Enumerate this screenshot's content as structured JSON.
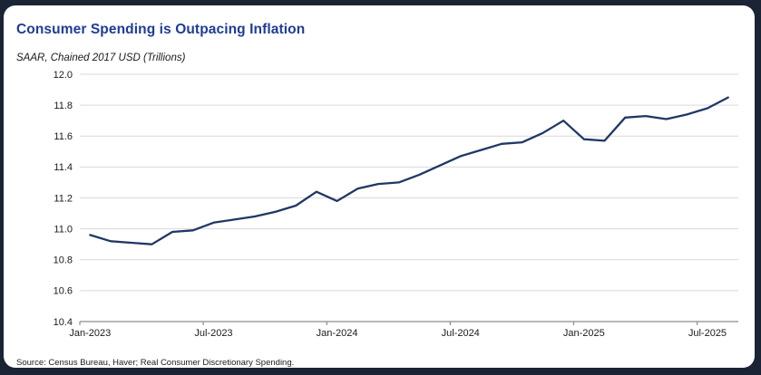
{
  "header": {
    "title": "Consumer Spending is Outpacing Inflation",
    "subtitle": "SAAR, Chained 2017 USD (Trillions)"
  },
  "footer": {
    "source": "Source: Census Bureau, Haver; Real Consumer Discretionary Spending."
  },
  "colors": {
    "frame_navy": "#1b2434",
    "title_blue": "#1e3c96",
    "line_navy": "#1f3864",
    "gridline_gray": "#d9d9d9",
    "axis_gray": "#8c8c8c"
  },
  "chart_data": {
    "type": "line",
    "title": "Consumer Spending is Outpacing Inflation",
    "ylabel": "SAAR, Chained 2017 USD (Trillions)",
    "x": [
      "Jan-2023",
      "Feb-2023",
      "Mar-2023",
      "Apr-2023",
      "May-2023",
      "Jun-2023",
      "Jul-2023",
      "Aug-2023",
      "Sep-2023",
      "Oct-2023",
      "Nov-2023",
      "Dec-2023",
      "Jan-2024",
      "Feb-2024",
      "Mar-2024",
      "Apr-2024",
      "May-2024",
      "Jun-2024",
      "Jul-2024",
      "Aug-2024",
      "Sep-2024",
      "Oct-2024",
      "Nov-2024",
      "Dec-2024",
      "Jan-2025",
      "Feb-2025",
      "Mar-2025",
      "Apr-2025",
      "May-2025",
      "Jun-2025",
      "Jul-2025",
      "Aug-2025"
    ],
    "values": [
      10.96,
      10.92,
      10.91,
      10.9,
      10.98,
      10.99,
      11.04,
      11.06,
      11.08,
      11.11,
      11.15,
      11.24,
      11.18,
      11.26,
      11.29,
      11.3,
      11.35,
      11.41,
      11.47,
      11.51,
      11.55,
      11.56,
      11.62,
      11.7,
      11.58,
      11.57,
      11.72,
      11.73,
      11.71,
      11.74,
      11.78,
      11.85
    ],
    "ylim": [
      10.4,
      12.0
    ],
    "ytick_step": 0.2,
    "ytick_labels": [
      "10.4",
      "10.6",
      "10.8",
      "11.0",
      "11.2",
      "11.4",
      "11.6",
      "11.8",
      "12.0"
    ],
    "xtick_labels": [
      "Jan-2023",
      "Jul-2023",
      "Jan-2024",
      "Jul-2024",
      "Jan-2025",
      "Jul-2025"
    ],
    "xtick_every": 6,
    "grid": true,
    "legend": "none",
    "line_color": "#1f3864"
  }
}
